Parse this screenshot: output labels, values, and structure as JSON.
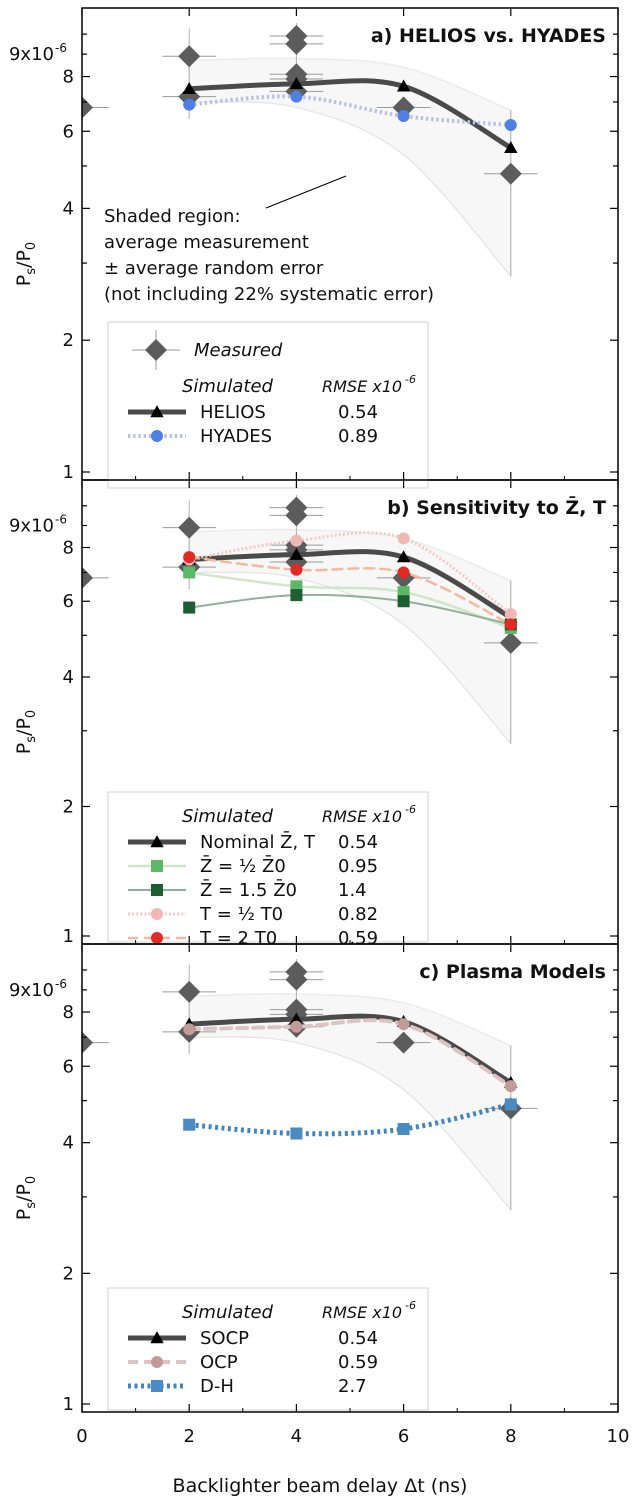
{
  "figure": {
    "x_axis_label": "Backlighter beam delay Δt (ns)",
    "x_ticks": [
      "0",
      "2",
      "4",
      "6",
      "8",
      "10"
    ],
    "y_axis_label": {
      "main": "P",
      "sub1": "s",
      "slash": "/P",
      "sub2": "0"
    },
    "y_tick_labels": [
      "9x10",
      "-6",
      "8",
      "6",
      "4",
      "2",
      "1"
    ]
  },
  "measured": [
    {
      "x": 0,
      "y": 6.8,
      "xerr": 0.5
    },
    {
      "x": 2,
      "y": 8.9,
      "xerr": 0.5,
      "ylo": 6.4,
      "yhi": 10.3
    },
    {
      "x": 2,
      "y": 7.2,
      "xerr": 0.5
    },
    {
      "x": 4,
      "y": 9.9,
      "xerr": 0.5,
      "ylo": 7.0,
      "yhi": 10.6
    },
    {
      "x": 4,
      "y": 9.5,
      "xerr": 0.5
    },
    {
      "x": 4,
      "y": 8.1,
      "xerr": 0.5
    },
    {
      "x": 4,
      "y": 7.9,
      "xerr": 0.5
    },
    {
      "x": 4,
      "y": 7.4,
      "xerr": 0.5
    },
    {
      "x": 6,
      "y": 6.8,
      "xerr": 0.5
    },
    {
      "x": 8,
      "y": 4.8,
      "xerr": 0.5,
      "ylo": 2.8,
      "yhi": 6.7
    }
  ],
  "shade": {
    "x": [
      2,
      4,
      6,
      8
    ],
    "upper": [
      8.7,
      8.8,
      8.4,
      6.7
    ],
    "lower": [
      7.0,
      6.8,
      5.3,
      2.8
    ],
    "upper_color": "#ececec",
    "lower_color": "#f7f7f7"
  },
  "chart_data": [
    {
      "type": "line",
      "title": "a) HELIOS vs. HYADES",
      "xlabel": "Backlighter beam delay Δt (ns)",
      "ylabel": "Ps/P0",
      "xlim": [
        0,
        10
      ],
      "ylim": [
        1,
        11
      ],
      "yscale": "log",
      "legend": "bottom-left",
      "annotation": [
        "Shaded region:",
        "average measurement",
        "± average random error",
        "(not including 22% systematic error)"
      ],
      "legend_headers": {
        "group": "Simulated",
        "metric": "RMSE x10",
        "metric_exp": "-6"
      },
      "measured_label": "Measured",
      "series": [
        {
          "name": "HELIOS",
          "rmse": "0.54",
          "x": [
            2,
            4,
            6,
            8
          ],
          "y": [
            7.5,
            7.7,
            7.6,
            5.5
          ],
          "color": "#4a4a4a",
          "marker": "triangle",
          "dash": "solid",
          "width": 5
        },
        {
          "name": "HYADES",
          "rmse": "0.89",
          "x": [
            2,
            4,
            6,
            8
          ],
          "y": [
            6.9,
            7.2,
            6.5,
            6.2
          ],
          "color": "#b9bfe6",
          "marker": "circle",
          "marker_color": "#4f7fe0",
          "dash": "dotted",
          "width": 4
        }
      ]
    },
    {
      "type": "line",
      "title": "b) Sensitivity to Z̄, T",
      "xlabel": "Backlighter beam delay Δt (ns)",
      "ylabel": "Ps/P0",
      "xlim": [
        0,
        10
      ],
      "ylim": [
        1,
        11
      ],
      "yscale": "log",
      "legend": "bottom-left",
      "legend_headers": {
        "group": "Simulated",
        "metric": "RMSE x10",
        "metric_exp": "-6"
      },
      "series": [
        {
          "name": "Nominal Z̄, T",
          "rmse": "0.54",
          "x": [
            2,
            4,
            6,
            8
          ],
          "y": [
            7.5,
            7.7,
            7.6,
            5.5
          ],
          "color": "#4a4a4a",
          "marker": "triangle",
          "dash": "solid",
          "width": 5
        },
        {
          "name": "Z̄ = ½ Z̄0",
          "rmse": "0.95",
          "x": [
            2,
            4,
            6,
            8
          ],
          "y": [
            7.0,
            6.5,
            6.3,
            5.2
          ],
          "color": "#cfe6c8",
          "marker": "square",
          "marker_color": "#5cb866",
          "dash": "solid",
          "width": 2.5
        },
        {
          "name": "Z̄ = 1.5 Z̄0",
          "rmse": "1.4",
          "x": [
            2,
            4,
            6,
            8
          ],
          "y": [
            5.8,
            6.2,
            6.0,
            5.3
          ],
          "color": "#8fb39a",
          "marker": "square",
          "marker_color": "#1d5e33",
          "dash": "solid",
          "width": 2
        },
        {
          "name": "T = ½ T0",
          "rmse": "0.82",
          "x": [
            2,
            4,
            6,
            8
          ],
          "y": [
            7.5,
            8.3,
            8.4,
            5.6
          ],
          "color": "#f4c8c8",
          "marker": "circle",
          "marker_color": "#f0b8b4",
          "dash": "dotted",
          "width": 3
        },
        {
          "name": "T = 2 T0",
          "rmse": "0.59",
          "x": [
            2,
            4,
            6,
            8
          ],
          "y": [
            7.6,
            7.1,
            7.0,
            5.3
          ],
          "color": "#f6b79c",
          "marker": "circle",
          "marker_color": "#e02a23",
          "dash": "dashed",
          "width": 2.5
        }
      ]
    },
    {
      "type": "line",
      "title": "c) Plasma Models",
      "xlabel": "Backlighter beam delay Δt (ns)",
      "ylabel": "Ps/P0",
      "xlim": [
        0,
        10
      ],
      "ylim": [
        1,
        11
      ],
      "yscale": "log",
      "legend": "bottom-left",
      "legend_headers": {
        "group": "Simulated",
        "metric": "RMSE x10",
        "metric_exp": "-6"
      },
      "series": [
        {
          "name": "SOCP",
          "rmse": "0.54",
          "x": [
            2,
            4,
            6,
            8
          ],
          "y": [
            7.5,
            7.7,
            7.6,
            5.5
          ],
          "color": "#4a4a4a",
          "marker": "triangle",
          "dash": "solid",
          "width": 5
        },
        {
          "name": "OCP",
          "rmse": "0.59",
          "x": [
            2,
            4,
            6,
            8
          ],
          "y": [
            7.3,
            7.4,
            7.5,
            5.4
          ],
          "color": "#dcc4c4",
          "marker": "circle",
          "marker_color": "#c49a99",
          "dash": "dashed",
          "width": 4
        },
        {
          "name": "D-H",
          "rmse": "2.7",
          "x": [
            2,
            4,
            6,
            8
          ],
          "y": [
            4.4,
            4.2,
            4.3,
            4.9
          ],
          "color": "#3f86be",
          "marker": "square",
          "marker_color": "#4a8bc4",
          "dash": "dotted",
          "width": 5
        }
      ]
    }
  ]
}
